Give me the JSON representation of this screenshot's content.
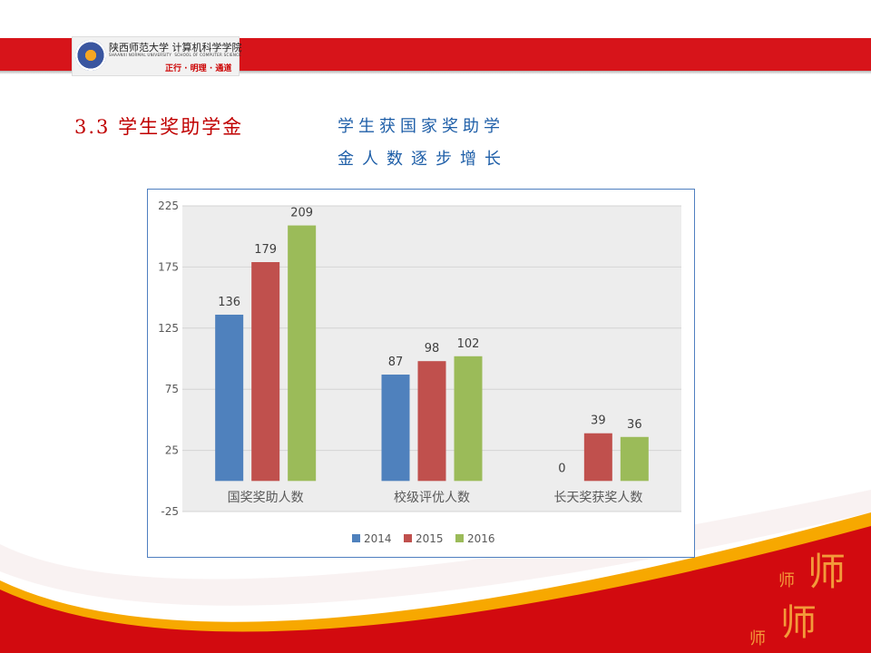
{
  "header": {
    "logo": {
      "university_cn": "陕西师范大学",
      "college_cn": "计算机科学学院",
      "university_en": "SHAANXI NORMAL UNIVERSITY",
      "college_en": "SCHOOL OF COMPUTER SCIENCE",
      "motto": "正行 · 明理 · 通道"
    },
    "brand_color": "#d7141a"
  },
  "section_title": "3.3 学生奖助学金",
  "subtitle_lines": [
    "学生获国家奖助学",
    "金人数逐步增长"
  ],
  "decoration": {
    "calligraphy": "师"
  },
  "chart_data": {
    "type": "bar",
    "categories": [
      "国奖奖助人数",
      "校级评优人数",
      "长天奖获奖人数"
    ],
    "series": [
      {
        "name": "2014",
        "values": [
          136,
          87,
          0
        ],
        "color": "#4f81bd"
      },
      {
        "name": "2015",
        "values": [
          179,
          98,
          39
        ],
        "color": "#c0504d"
      },
      {
        "name": "2016",
        "values": [
          209,
          102,
          36
        ],
        "color": "#9bbb59"
      }
    ],
    "ylim": [
      -25,
      225
    ],
    "yticks": [
      225,
      175,
      125,
      75,
      25,
      -25
    ],
    "grid": true,
    "legend": "bottom",
    "data_labels": true
  }
}
